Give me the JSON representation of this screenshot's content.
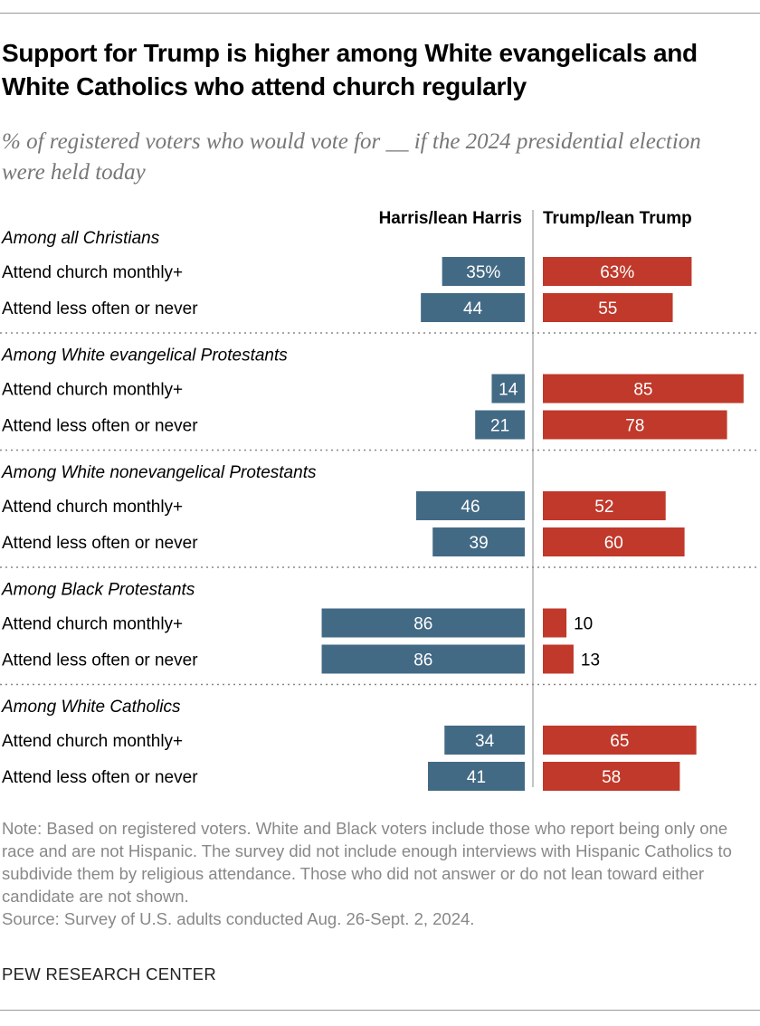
{
  "title": "Support for Trump is higher among White evangelicals and White Catholics who attend church regularly",
  "subtitle": "% of registered voters who would vote for __ if the 2024 presidential election were held today",
  "chart_data": {
    "type": "bar",
    "orientation": "horizontal-diverging",
    "title": "Support for Trump is higher among White evangelicals and White Catholics who attend church regularly",
    "series_names": [
      "Harris/lean Harris",
      "Trump/lean Trump"
    ],
    "colors": {
      "harris": "#436a85",
      "trump": "#c0392b"
    },
    "groups": [
      {
        "label": "Among all Christians",
        "rows": [
          {
            "label": "Attend church monthly+",
            "harris": 35,
            "trump": 63,
            "harris_label": "35%",
            "trump_label": "63%"
          },
          {
            "label": "Attend less often or never",
            "harris": 44,
            "trump": 55,
            "harris_label": "44",
            "trump_label": "55"
          }
        ]
      },
      {
        "label": "Among White evangelical Protestants",
        "rows": [
          {
            "label": "Attend church monthly+",
            "harris": 14,
            "trump": 85,
            "harris_label": "14",
            "trump_label": "85"
          },
          {
            "label": "Attend less often or never",
            "harris": 21,
            "trump": 78,
            "harris_label": "21",
            "trump_label": "78"
          }
        ]
      },
      {
        "label": "Among White nonevangelical Protestants",
        "rows": [
          {
            "label": "Attend church monthly+",
            "harris": 46,
            "trump": 52,
            "harris_label": "46",
            "trump_label": "52"
          },
          {
            "label": "Attend less often or never",
            "harris": 39,
            "trump": 60,
            "harris_label": "39",
            "trump_label": "60"
          }
        ]
      },
      {
        "label": "Among Black Protestants",
        "rows": [
          {
            "label": "Attend church monthly+",
            "harris": 86,
            "trump": 10,
            "harris_label": "86",
            "trump_label": "10"
          },
          {
            "label": "Attend less often or never",
            "harris": 86,
            "trump": 13,
            "harris_label": "86",
            "trump_label": "13"
          }
        ]
      },
      {
        "label": "Among White Catholics",
        "rows": [
          {
            "label": "Attend church monthly+",
            "harris": 34,
            "trump": 65,
            "harris_label": "34",
            "trump_label": "65"
          },
          {
            "label": "Attend less often or never",
            "harris": 41,
            "trump": 58,
            "harris_label": "41",
            "trump_label": "58"
          }
        ]
      }
    ]
  },
  "notes": "Note: Based on registered voters. White and Black voters include those who report being only one race and are not Hispanic. The survey did not include enough interviews with Hispanic Catholics to subdivide them by religious attendance. Those who did not answer or do not lean toward either candidate are not shown.",
  "source": "Source: Survey of U.S. adults conducted Aug. 26-Sept. 2, 2024.",
  "brand": "PEW RESEARCH CENTER"
}
